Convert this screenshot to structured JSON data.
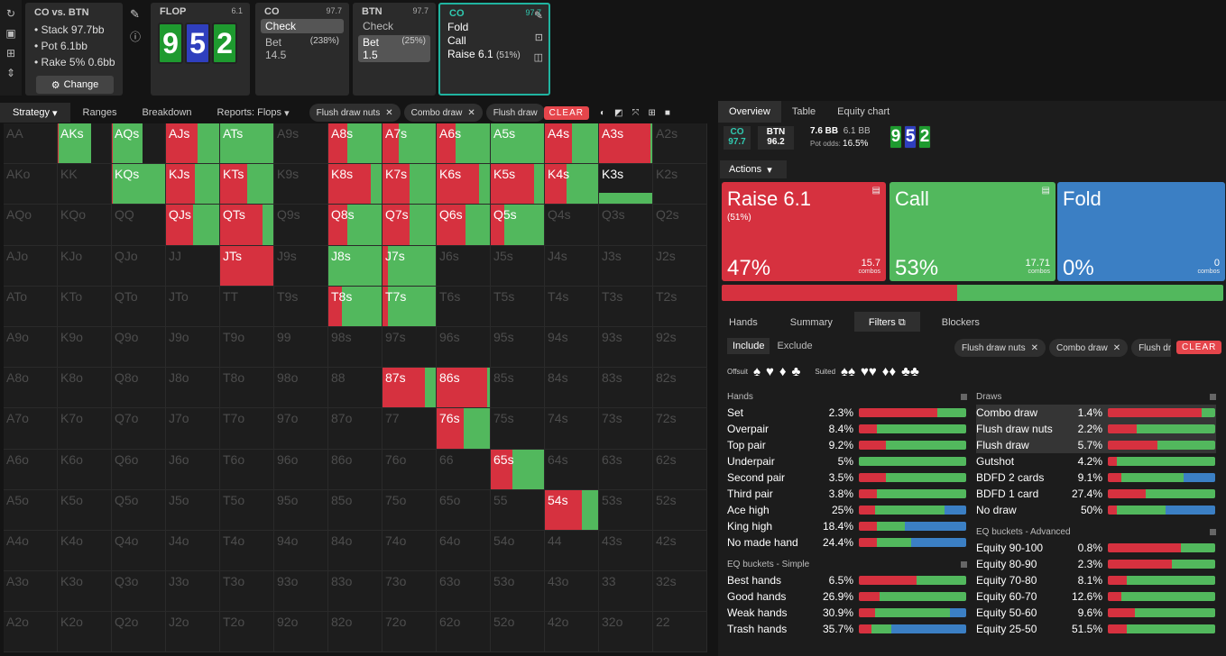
{
  "sidebar": {
    "icons": [
      "refresh-icon",
      "save-icon",
      "gamepad-icon",
      "align-icon"
    ]
  },
  "matchup": {
    "title": "CO vs. BTN",
    "stack": "Stack 97.7bb",
    "pot": "Pot 6.1bb",
    "rake": "Rake 5% 0.6bb",
    "change_label": "Change"
  },
  "flop": {
    "label": "FLOP",
    "pot": "6.1",
    "cards": [
      {
        "rank": "9",
        "color": "#1e9a2f"
      },
      {
        "rank": "5",
        "color": "#2f3fbe"
      },
      {
        "rank": "2",
        "color": "#1e9a2f"
      }
    ]
  },
  "nodes": [
    {
      "pos": "CO",
      "stack": "97.7",
      "actions": [
        {
          "label": "Check",
          "pct": "",
          "sel": true
        },
        {
          "label": "Bet 14.5",
          "pct": "(238%)",
          "sel": false
        }
      ]
    },
    {
      "pos": "BTN",
      "stack": "97.7",
      "actions": [
        {
          "label": "Check",
          "pct": "",
          "sel": false
        },
        {
          "label": "Bet 1.5",
          "pct": "(25%)",
          "sel": true
        }
      ]
    },
    {
      "pos": "CO",
      "stack": "97.7",
      "actions": [
        {
          "label": "Fold",
          "pct": ""
        },
        {
          "label": "Call",
          "pct": ""
        },
        {
          "label": "Raise 6.1",
          "pct": "(51%)"
        }
      ]
    }
  ],
  "tabs": {
    "strategy": "Strategy",
    "ranges": "Ranges",
    "breakdown": "Breakdown",
    "reports": "Reports: Flops"
  },
  "chips": [
    "Flush draw nuts",
    "Combo draw",
    "Flush draw"
  ],
  "clear": "CLEAR",
  "grid_cells": [
    [
      "AA",
      "AKs",
      "AQs",
      "AJs",
      "ATs",
      "A9s",
      "A8s",
      "A7s",
      "A6s",
      "A5s",
      "A4s",
      "A3s",
      "A2s"
    ],
    [
      "AKo",
      "KK",
      "KQs",
      "KJs",
      "KTs",
      "K9s",
      "K8s",
      "K7s",
      "K6s",
      "K5s",
      "K4s",
      "K3s",
      "K2s"
    ],
    [
      "AQo",
      "KQo",
      "QQ",
      "QJs",
      "QTs",
      "Q9s",
      "Q8s",
      "Q7s",
      "Q6s",
      "Q5s",
      "Q4s",
      "Q3s",
      "Q2s"
    ],
    [
      "AJo",
      "KJo",
      "QJo",
      "JJ",
      "JTs",
      "J9s",
      "J8s",
      "J7s",
      "J6s",
      "J5s",
      "J4s",
      "J3s",
      "J2s"
    ],
    [
      "ATo",
      "KTo",
      "QTo",
      "JTo",
      "TT",
      "T9s",
      "T8s",
      "T7s",
      "T6s",
      "T5s",
      "T4s",
      "T3s",
      "T2s"
    ],
    [
      "A9o",
      "K9o",
      "Q9o",
      "J9o",
      "T9o",
      "99",
      "98s",
      "97s",
      "96s",
      "95s",
      "94s",
      "93s",
      "92s"
    ],
    [
      "A8o",
      "K8o",
      "Q8o",
      "J8o",
      "T8o",
      "98o",
      "88",
      "87s",
      "86s",
      "85s",
      "84s",
      "83s",
      "82s"
    ],
    [
      "A7o",
      "K7o",
      "Q7o",
      "J7o",
      "T7o",
      "97o",
      "87o",
      "77",
      "76s",
      "75s",
      "74s",
      "73s",
      "72s"
    ],
    [
      "A6o",
      "K6o",
      "Q6o",
      "J6o",
      "T6o",
      "96o",
      "86o",
      "76o",
      "66",
      "65s",
      "64s",
      "63s",
      "62s"
    ],
    [
      "A5o",
      "K5o",
      "Q5o",
      "J5o",
      "T5o",
      "95o",
      "85o",
      "75o",
      "65o",
      "55",
      "54s",
      "53s",
      "52s"
    ],
    [
      "A4o",
      "K4o",
      "Q4o",
      "J4o",
      "T4o",
      "94o",
      "84o",
      "74o",
      "64o",
      "54o",
      "44",
      "43s",
      "42s"
    ],
    [
      "A3o",
      "K3o",
      "Q3o",
      "J3o",
      "T3o",
      "93o",
      "83o",
      "73o",
      "63o",
      "53o",
      "43o",
      "33",
      "32s"
    ],
    [
      "A2o",
      "K2o",
      "Q2o",
      "J2o",
      "T2o",
      "92o",
      "82o",
      "72o",
      "62o",
      "52o",
      "42o",
      "32o",
      "22"
    ]
  ],
  "grid_strategy": {
    "AKs": [
      1,
      0.02,
      0.6,
      0.38
    ],
    "AQs": [
      1,
      0.02,
      0.55,
      0.43
    ],
    "AJs": [
      1,
      0.6,
      0.4,
      0
    ],
    "ATs": [
      1,
      0,
      1,
      0
    ],
    "A8s": [
      1,
      0.35,
      0.65,
      0
    ],
    "A7s": [
      1,
      0.3,
      0.7,
      0
    ],
    "A6s": [
      1,
      0.35,
      0.65,
      0
    ],
    "A5s": [
      1,
      0,
      1,
      0
    ],
    "A4s": [
      1,
      0.5,
      0.5,
      0
    ],
    "A3s": [
      1,
      0.97,
      0.03,
      0
    ],
    "KQs": [
      1,
      0.02,
      0.98,
      0
    ],
    "KJs": [
      1,
      0.55,
      0.45,
      0
    ],
    "KTs": [
      1,
      0.5,
      0.5,
      0
    ],
    "K8s": [
      1,
      0.8,
      0.2,
      0
    ],
    "K7s": [
      1,
      0.5,
      0.5,
      0
    ],
    "K6s": [
      1,
      0.8,
      0.2,
      0
    ],
    "K5s": [
      1,
      0.82,
      0.18,
      0
    ],
    "K4s": [
      1,
      0.4,
      0.6,
      0
    ],
    "K3s": [
      1,
      0,
      0.1,
      0
    ],
    "QJs": [
      1,
      0.5,
      0.5,
      0
    ],
    "QTs": [
      1,
      0.8,
      0.2,
      0
    ],
    "Q8s": [
      1,
      0.35,
      0.65,
      0
    ],
    "Q7s": [
      1,
      0.5,
      0.5,
      0
    ],
    "Q6s": [
      1,
      0.55,
      0.45,
      0
    ],
    "Q5s": [
      1,
      0.25,
      0.75,
      0
    ],
    "JTs": [
      1,
      1,
      0,
      0
    ],
    "J8s": [
      1,
      0,
      1,
      0
    ],
    "J7s": [
      1,
      0.1,
      0.9,
      0
    ],
    "T8s": [
      1,
      0.25,
      0.75,
      0
    ],
    "T7s": [
      1,
      0.1,
      0.9,
      0
    ],
    "87s": [
      1,
      0.8,
      0.2,
      0
    ],
    "86s": [
      1,
      0.95,
      0.05,
      0
    ],
    "76s": [
      1,
      0.5,
      0.5,
      0
    ],
    "65s": [
      1,
      0.4,
      0.6,
      0
    ],
    "54s": [
      1,
      0.7,
      0.3,
      0
    ]
  },
  "right": {
    "tabs": [
      "Overview",
      "Table",
      "Equity chart"
    ],
    "co": {
      "pos": "CO",
      "stack": "97.7"
    },
    "btn": {
      "pos": "BTN",
      "stack": "96.2"
    },
    "pot_bb": "7.6 BB",
    "bet_bb": "6.1 BB",
    "pot_odds_label": "Pot odds:",
    "pot_odds": "16.5%",
    "actions_label": "Actions",
    "action_cards": [
      {
        "name": "Raise 6.1",
        "sub": "(51%)",
        "pct": "47%",
        "combos": "15.7",
        "color": "#d6313f"
      },
      {
        "name": "Call",
        "sub": "",
        "pct": "53%",
        "combos": "17.71",
        "color": "#52b85d"
      },
      {
        "name": "Fold",
        "sub": "",
        "pct": "0%",
        "combos": "0",
        "color": "#3b7fc4"
      }
    ],
    "combos_word": "combos",
    "mix": [
      0.47,
      0.53,
      0
    ],
    "subtabs": [
      "Hands",
      "Summary",
      "Filters",
      "Blockers"
    ],
    "include": "Include",
    "exclude": "Exclude",
    "offsuit": "Offsuit",
    "suited": "Suited",
    "hands_title": "Hands",
    "hands": [
      {
        "n": "Set",
        "v": "2.3%",
        "m": [
          0.73,
          0.27,
          0
        ]
      },
      {
        "n": "Overpair",
        "v": "8.4%",
        "m": [
          0.17,
          0.83,
          0
        ]
      },
      {
        "n": "Top pair",
        "v": "9.2%",
        "m": [
          0.25,
          0.75,
          0
        ]
      },
      {
        "n": "Underpair",
        "v": "5%",
        "m": [
          0,
          1,
          0
        ]
      },
      {
        "n": "Second pair",
        "v": "3.5%",
        "m": [
          0.25,
          0.75,
          0
        ]
      },
      {
        "n": "Third pair",
        "v": "3.8%",
        "m": [
          0.17,
          0.83,
          0
        ]
      },
      {
        "n": "Ace high",
        "v": "25%",
        "m": [
          0.15,
          0.65,
          0.2
        ]
      },
      {
        "n": "King high",
        "v": "18.4%",
        "m": [
          0.17,
          0.26,
          0.57
        ]
      },
      {
        "n": "No made hand",
        "v": "24.4%",
        "m": [
          0.17,
          0.32,
          0.51
        ]
      }
    ],
    "eqs_title": "EQ buckets - Simple",
    "eqs": [
      {
        "n": "Best hands",
        "v": "6.5%",
        "m": [
          0.54,
          0.46,
          0
        ]
      },
      {
        "n": "Good hands",
        "v": "26.9%",
        "m": [
          0.19,
          0.81,
          0
        ]
      },
      {
        "n": "Weak hands",
        "v": "30.9%",
        "m": [
          0.15,
          0.7,
          0.15
        ]
      },
      {
        "n": "Trash hands",
        "v": "35.7%",
        "m": [
          0.12,
          0.18,
          0.7
        ]
      }
    ],
    "draws_title": "Draws",
    "draws": [
      {
        "n": "Combo draw",
        "v": "1.4%",
        "m": [
          0.87,
          0.13,
          0
        ],
        "hl": true
      },
      {
        "n": "Flush draw nuts",
        "v": "2.2%",
        "m": [
          0.27,
          0.73,
          0
        ],
        "hl": true
      },
      {
        "n": "Flush draw",
        "v": "5.7%",
        "m": [
          0.46,
          0.54,
          0
        ],
        "hl": true
      },
      {
        "n": "Gutshot",
        "v": "4.2%",
        "m": [
          0.08,
          0.92,
          0
        ],
        "hl": false
      },
      {
        "n": "BDFD 2 cards",
        "v": "9.1%",
        "m": [
          0.13,
          0.58,
          0.29
        ],
        "hl": false
      },
      {
        "n": "BDFD 1 card",
        "v": "27.4%",
        "m": [
          0.35,
          0.65,
          0
        ],
        "hl": false
      },
      {
        "n": "No draw",
        "v": "50%",
        "m": [
          0.08,
          0.46,
          0.46
        ],
        "hl": false
      }
    ],
    "eqa_title": "EQ buckets - Advanced",
    "eqa": [
      {
        "n": "Equity 90-100",
        "v": "0.8%",
        "m": [
          0.68,
          0.32,
          0
        ]
      },
      {
        "n": "Equity 80-90",
        "v": "2.3%",
        "m": [
          0.6,
          0.4,
          0
        ]
      },
      {
        "n": "Equity 70-80",
        "v": "8.1%",
        "m": [
          0.18,
          0.82,
          0
        ]
      },
      {
        "n": "Equity 60-70",
        "v": "12.6%",
        "m": [
          0.13,
          0.87,
          0
        ]
      },
      {
        "n": "Equity 50-60",
        "v": "9.6%",
        "m": [
          0.25,
          0.75,
          0
        ]
      },
      {
        "n": "Equity 25-50",
        "v": "51.5%",
        "m": [
          0.18,
          0.82,
          0
        ]
      }
    ]
  }
}
